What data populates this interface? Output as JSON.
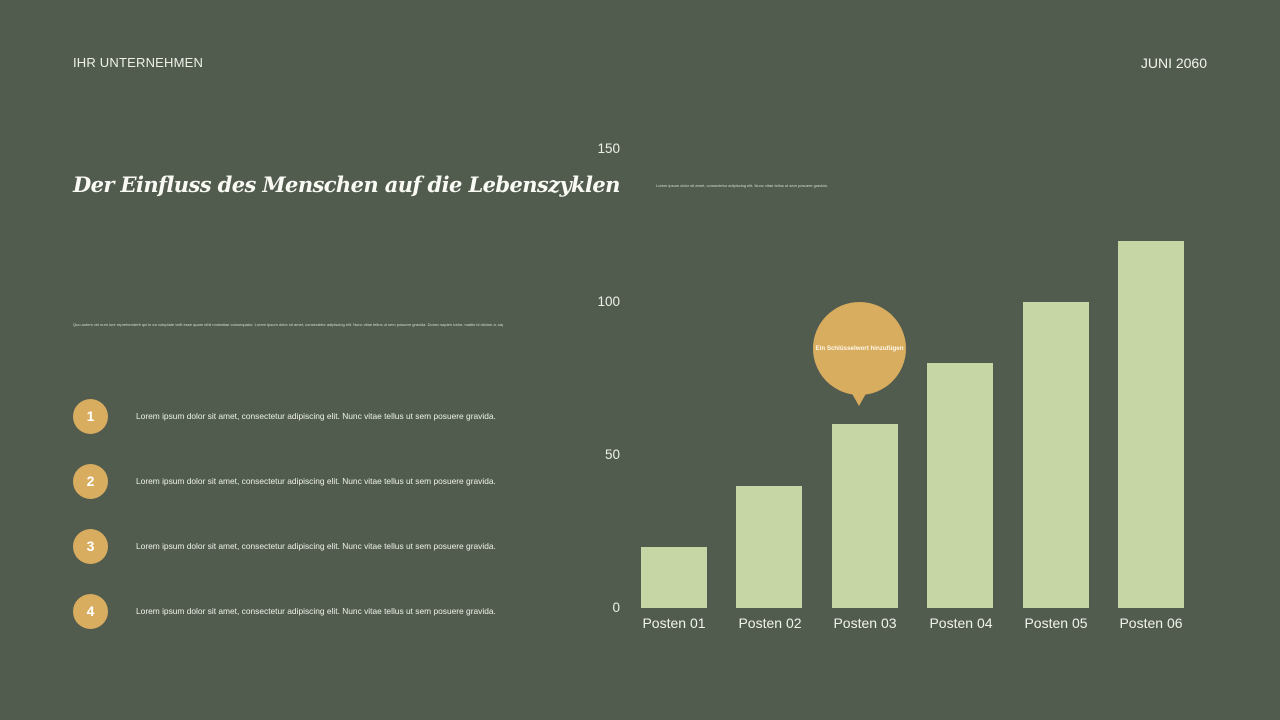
{
  "header": {
    "company": "IHR UNTERNEHMEN",
    "date": "JUNI 2060"
  },
  "title": "Der Einfluss des Menschen auf die Lebenszyklen",
  "intro_text": "Quo autem vel eum iure reprehenderit qui in ea voluptate velit esse quam nihil molestiae consequatur. Lorem ipsum dolor sit amet, consectetur adipiscing elit. Nunc vitae tellus ut sem posuere gravida. Donec sapien tortor, mattis id dictum a, sagittis.",
  "list": [
    {
      "number": "1",
      "text": "Lorem ipsum dolor sit amet, consectetur adipiscing elit. Nunc vitae tellus ut sem posuere gravida."
    },
    {
      "number": "2",
      "text": "Lorem ipsum dolor sit amet, consectetur adipiscing elit. Nunc vitae tellus ut sem posuere gravida."
    },
    {
      "number": "3",
      "text": "Lorem ipsum dolor sit amet, consectetur adipiscing elit. Nunc vitae tellus ut sem posuere gravida."
    },
    {
      "number": "4",
      "text": "Lorem ipsum dolor sit amet, consectetur adipiscing elit. Nunc vitae tellus ut sem posuere gravida."
    }
  ],
  "chart_note": "Lorem ipsum dolor sit amet, consectetur adipiscing elit. Nunc vitae tellus ut sem posuere gravida.",
  "callout": "Ein Schlüsselwort hinzufügen",
  "colors": {
    "background": "#515c4f",
    "bar": "#c6d6a4",
    "accent": "#d9ad5f",
    "text": "#f2f2ec"
  },
  "chart_data": {
    "type": "bar",
    "title": "",
    "xlabel": "",
    "ylabel": "",
    "categories": [
      "Posten 01",
      "Posten 02",
      "Posten 03",
      "Posten 04",
      "Posten 05",
      "Posten 06"
    ],
    "values": [
      20,
      40,
      60,
      80,
      100,
      120
    ],
    "ylim": [
      0,
      150
    ],
    "y_ticks": [
      "0",
      "50",
      "100",
      "150"
    ],
    "grid": false,
    "legend": "none",
    "annotations": [
      {
        "category": "Posten 03",
        "text": "Ein Schlüsselwort hinzufügen",
        "style": "speech-bubble"
      }
    ],
    "note": "Lorem ipsum dolor sit amet, consectetur adipiscing elit. Nunc vitae tellus ut sem posuere gravida."
  }
}
